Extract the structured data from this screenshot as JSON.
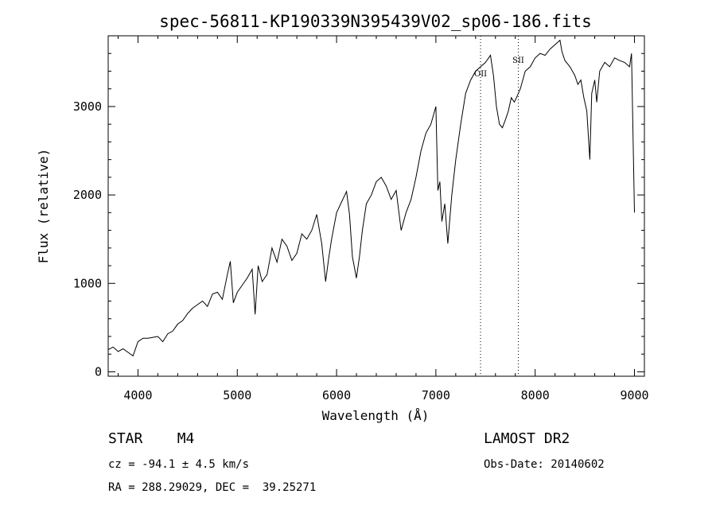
{
  "chart_data": {
    "type": "line",
    "title": "spec-56811-KP190339N395439V02_sp06-186.fits",
    "xlabel": "Wavelength (Å)",
    "ylabel": "Flux (relative)",
    "xlim": [
      3700,
      9100
    ],
    "ylim": [
      -50,
      3800
    ],
    "x_ticks": [
      "4000",
      "5000",
      "6000",
      "7000",
      "8000",
      "9000"
    ],
    "y_ticks": [
      "0",
      "1000",
      "2000",
      "3000"
    ],
    "grid": false,
    "legend": "none",
    "line_color": "#000000",
    "series": [
      {
        "x": [
          3700,
          3750,
          3800,
          3850,
          3900,
          3950,
          4000,
          4050,
          4100,
          4150,
          4200,
          4250,
          4300,
          4350,
          4400,
          4450,
          4500,
          4550,
          4600,
          4650,
          4700,
          4750,
          4800,
          4850,
          4900,
          4930,
          4960,
          5000,
          5050,
          5100,
          5150,
          5180,
          5210,
          5250,
          5300,
          5350,
          5400,
          5450,
          5500,
          5550,
          5600,
          5650,
          5700,
          5750,
          5800,
          5850,
          5890,
          5920,
          5950,
          6000,
          6050,
          6100,
          6130,
          6160,
          6200,
          6230,
          6260,
          6300,
          6350,
          6400,
          6450,
          6500,
          6550,
          6600,
          6650,
          6700,
          6750,
          6800,
          6850,
          6900,
          6950,
          7000,
          7020,
          7040,
          7060,
          7090,
          7120,
          7160,
          7200,
          7250,
          7300,
          7350,
          7400,
          7450,
          7500,
          7550,
          7580,
          7610,
          7640,
          7670,
          7700,
          7730,
          7760,
          7790,
          7820,
          7850,
          7900,
          7950,
          8000,
          8050,
          8100,
          8150,
          8200,
          8250,
          8270,
          8300,
          8350,
          8400,
          8430,
          8460,
          8490,
          8520,
          8550,
          8570,
          8600,
          8620,
          8650,
          8700,
          8750,
          8800,
          8850,
          8900,
          8950,
          8970,
          9000
        ],
        "y": [
          250,
          280,
          230,
          260,
          220,
          180,
          340,
          380,
          380,
          390,
          400,
          340,
          430,
          460,
          540,
          580,
          660,
          720,
          760,
          800,
          740,
          880,
          900,
          820,
          1100,
          1250,
          780,
          900,
          980,
          1060,
          1160,
          650,
          1200,
          1020,
          1100,
          1400,
          1240,
          1500,
          1420,
          1260,
          1340,
          1560,
          1500,
          1600,
          1780,
          1450,
          1020,
          1280,
          1500,
          1800,
          1920,
          2040,
          1780,
          1300,
          1060,
          1300,
          1600,
          1900,
          2000,
          2150,
          2200,
          2100,
          1950,
          2050,
          1600,
          1800,
          1950,
          2200,
          2500,
          2700,
          2800,
          3000,
          2050,
          2150,
          1700,
          1900,
          1450,
          2000,
          2400,
          2800,
          3150,
          3300,
          3400,
          3450,
          3500,
          3580,
          3350,
          3000,
          2800,
          2760,
          2850,
          2950,
          3100,
          3050,
          3120,
          3200,
          3400,
          3450,
          3550,
          3600,
          3580,
          3650,
          3700,
          3750,
          3620,
          3520,
          3450,
          3350,
          3250,
          3300,
          3100,
          2950,
          2400,
          3150,
          3300,
          3050,
          3400,
          3500,
          3450,
          3550,
          3520,
          3500,
          3450,
          3600,
          1800
        ]
      }
    ],
    "annotations": [
      {
        "text": "OII",
        "x": 7450
      },
      {
        "text": "SII",
        "x": 7830
      }
    ]
  },
  "info": {
    "class_line": "STAR    M4",
    "cz_line": "cz = -94.1 ± 4.5 km/s",
    "radec_line": "RA = 288.29029, DEC =  39.25271",
    "survey": "LAMOST DR2",
    "obs_date": "Obs-Date: 20140602"
  }
}
